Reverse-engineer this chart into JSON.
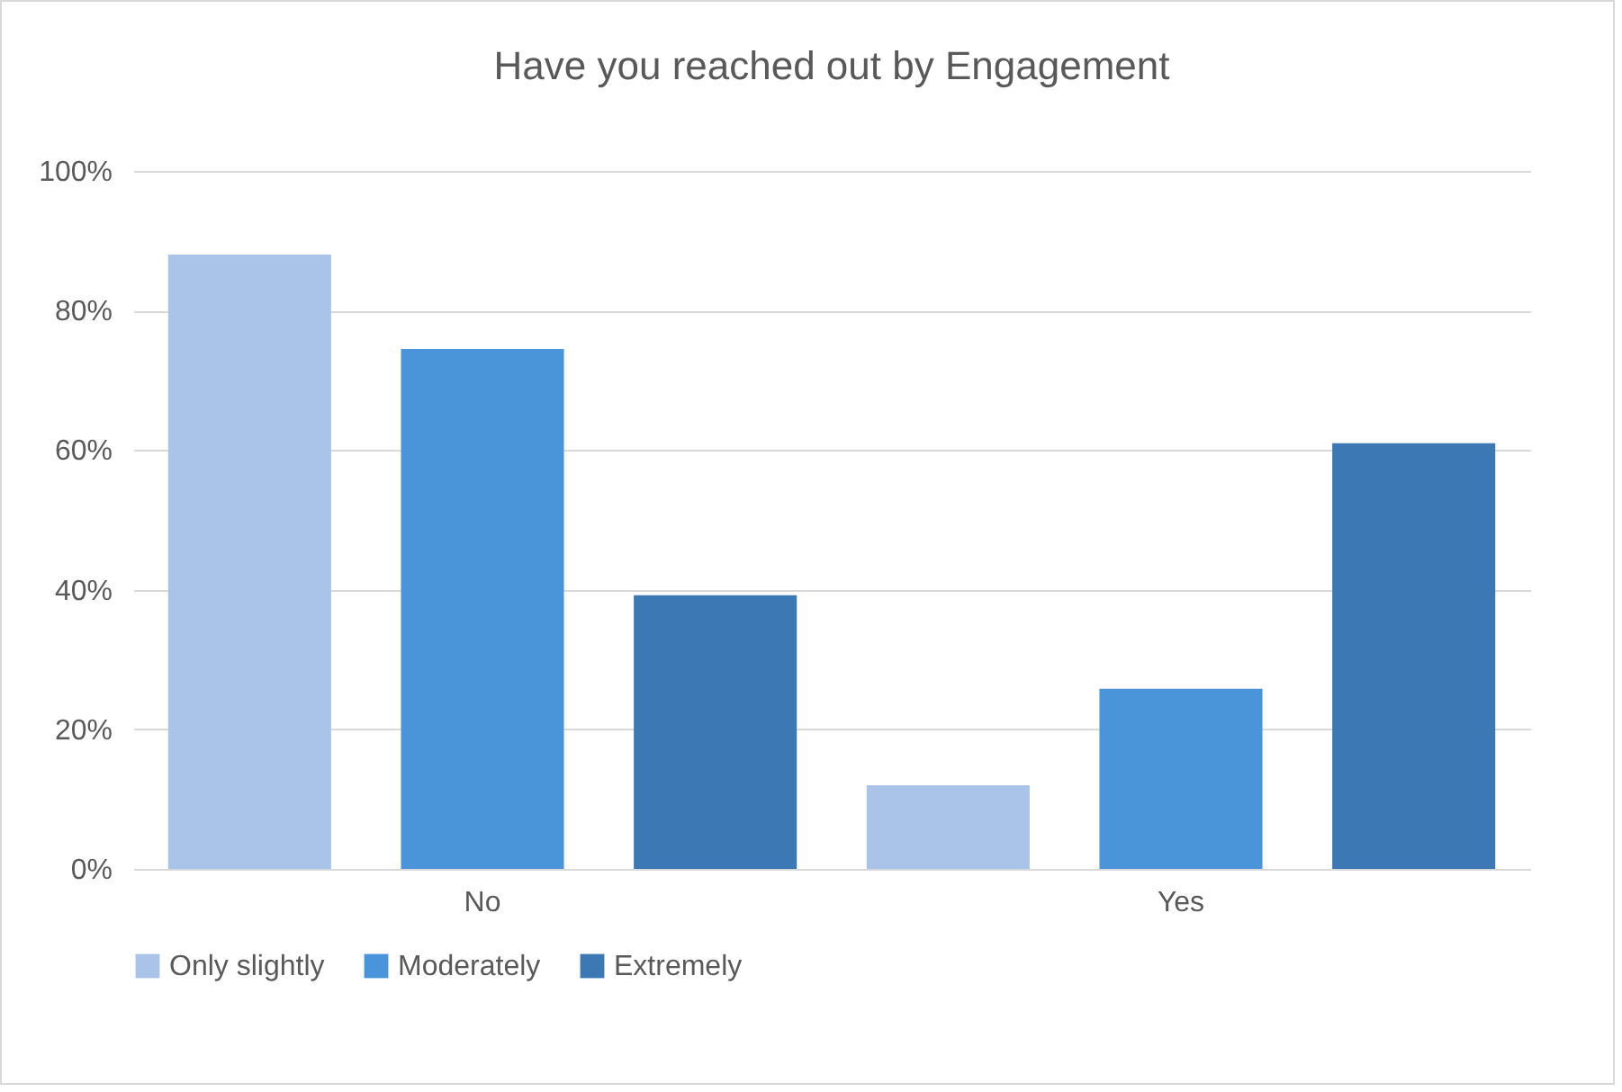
{
  "chart_data": {
    "type": "bar",
    "title": "Have you reached out by Engagement",
    "categories": [
      "No",
      "Yes"
    ],
    "series": [
      {
        "name": "Only slightly",
        "color": "#a9c4e8",
        "values": [
          88,
          12
        ]
      },
      {
        "name": "Moderately",
        "color": "#4a94da",
        "values": [
          74.5,
          25.8
        ]
      },
      {
        "name": "Extremely",
        "color": "#3c79b4",
        "values": [
          39.2,
          61
        ]
      }
    ],
    "ylim": [
      0,
      100
    ],
    "yticks": [
      {
        "value": 0,
        "label": "0%"
      },
      {
        "value": 20,
        "label": "20%"
      },
      {
        "value": 40,
        "label": "40%"
      },
      {
        "value": 60,
        "label": "60%"
      },
      {
        "value": 80,
        "label": "80%"
      },
      {
        "value": 100,
        "label": "100%"
      }
    ],
    "grid": "y",
    "legend": "bottom"
  }
}
